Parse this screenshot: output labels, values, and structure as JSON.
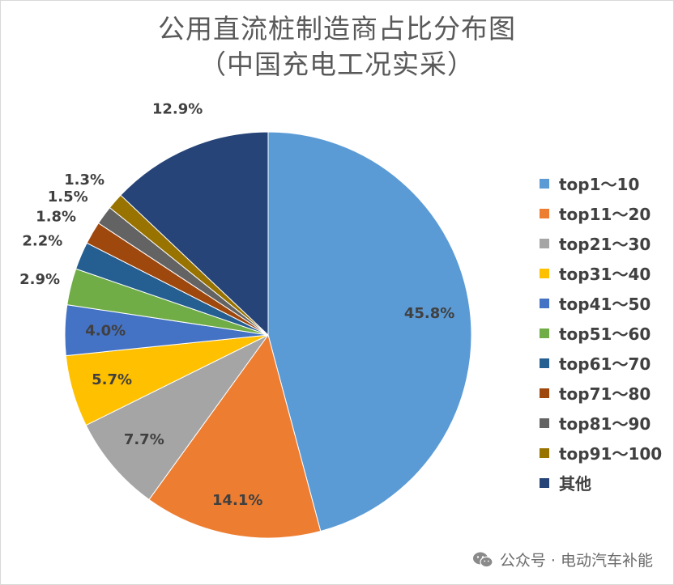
{
  "chart_data": {
    "type": "pie",
    "title": "公用直流桩制造商占比分布图",
    "subtitle": "（中国充电工况实采）",
    "legend_position": "right",
    "slices": [
      {
        "label": "top1～10",
        "value": 45.8,
        "value_label": "45.8%",
        "color": "#5B9BD5"
      },
      {
        "label": "top11～20",
        "value": 14.1,
        "value_label": "14.1%",
        "color": "#ED7D31"
      },
      {
        "label": "top21～30",
        "value": 7.7,
        "value_label": "7.7%",
        "color": "#A5A5A5"
      },
      {
        "label": "top31～40",
        "value": 5.7,
        "value_label": "5.7%",
        "color": "#FFC000"
      },
      {
        "label": "top41～50",
        "value": 4.0,
        "value_label": "4.0%",
        "color": "#4472C4"
      },
      {
        "label": "top51～60",
        "value": 2.9,
        "value_label": "2.9%",
        "color": "#70AD47"
      },
      {
        "label": "top61～70",
        "value": 2.2,
        "value_label": "2.2%",
        "color": "#255E91"
      },
      {
        "label": "top71～80",
        "value": 1.8,
        "value_label": "1.8%",
        "color": "#9E480E"
      },
      {
        "label": "top81～90",
        "value": 1.5,
        "value_label": "1.5%",
        "color": "#636363"
      },
      {
        "label": "top91～100",
        "value": 1.3,
        "value_label": "1.3%",
        "color": "#997300"
      },
      {
        "label": "其他",
        "value": 12.9,
        "value_label": "12.9%",
        "color": "#264478"
      }
    ]
  },
  "watermark": {
    "text": "公众号 · 电动汽车补能",
    "icon": "wechat-icon"
  }
}
